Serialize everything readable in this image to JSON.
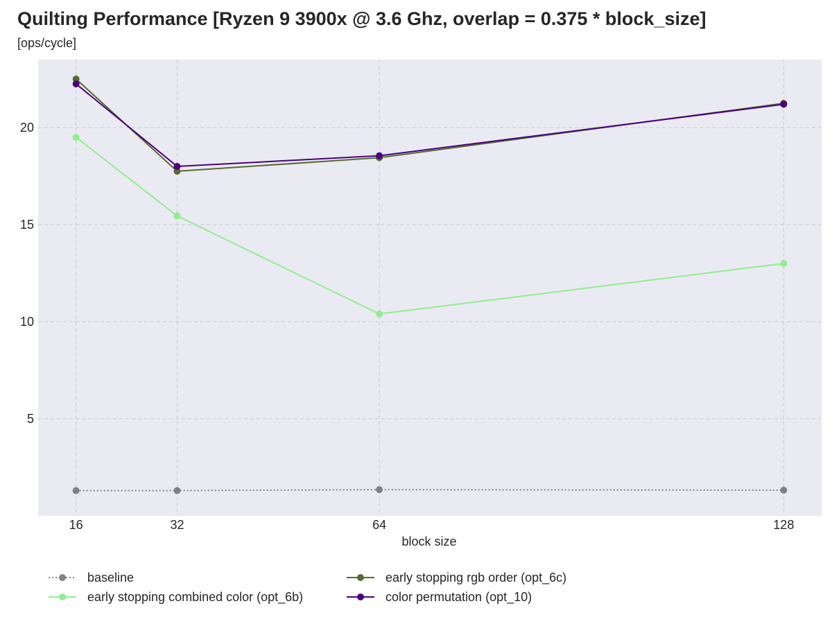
{
  "chart_data": {
    "type": "line",
    "title": "Quilting Performance [Ryzen 9 3900x @ 3.6 Ghz, overlap = 0.375 * block_size]",
    "subtitle": "[ops/cycle]",
    "xlabel": "block size",
    "ylabel": "",
    "x": [
      16,
      32,
      64,
      128
    ],
    "xlim": [
      10,
      134
    ],
    "ylim": [
      0,
      23.5
    ],
    "xticks": [
      "16",
      "32",
      "64",
      "128"
    ],
    "yticks": [
      "5",
      "10",
      "15",
      "20"
    ],
    "grid": true,
    "legend_position": "bottom",
    "series": [
      {
        "name": "baseline",
        "values": [
          1.3,
          1.3,
          1.35,
          1.32
        ],
        "color": "#808080",
        "line_style": "dotted",
        "marker": "circle"
      },
      {
        "name": "early stopping combined color (opt_6b)",
        "values": [
          19.5,
          15.45,
          10.4,
          13.0
        ],
        "color": "#90ee90",
        "line_style": "solid",
        "marker": "circle"
      },
      {
        "name": "early stopping rgb order (opt_6c)",
        "values": [
          22.5,
          17.75,
          18.45,
          21.25
        ],
        "color": "#556b2f",
        "line_style": "solid",
        "marker": "circle"
      },
      {
        "name": "color permutation (opt_10)",
        "values": [
          22.25,
          18.0,
          18.55,
          21.2
        ],
        "color": "#4b0082",
        "line_style": "solid",
        "marker": "circle"
      }
    ]
  }
}
